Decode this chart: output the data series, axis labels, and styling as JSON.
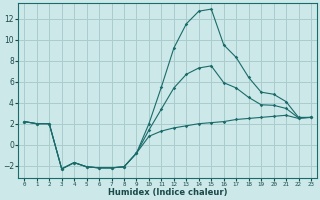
{
  "xlabel": "Humidex (Indice chaleur)",
  "ylabel": "",
  "bg_color": "#cce8e8",
  "grid_color": "#aacccc",
  "line_color": "#1a6b6b",
  "xlim": [
    -0.5,
    23.5
  ],
  "ylim": [
    -3.2,
    13.5
  ],
  "xticks": [
    0,
    1,
    2,
    3,
    4,
    5,
    6,
    7,
    8,
    9,
    10,
    11,
    12,
    13,
    14,
    15,
    16,
    17,
    18,
    19,
    20,
    21,
    22,
    23
  ],
  "yticks": [
    -2,
    0,
    2,
    4,
    6,
    8,
    10,
    12
  ],
  "series": {
    "max": {
      "x": [
        0,
        1,
        2,
        3,
        4,
        5,
        6,
        7,
        8,
        9,
        10,
        11,
        12,
        13,
        14,
        15,
        16,
        17,
        18,
        19,
        20,
        21,
        22,
        23
      ],
      "y": [
        2.2,
        2.0,
        2.0,
        -2.3,
        -1.7,
        -2.1,
        -2.2,
        -2.2,
        -2.1,
        -0.8,
        2.0,
        5.5,
        9.2,
        11.5,
        12.7,
        12.9,
        9.5,
        8.3,
        6.4,
        5.0,
        4.8,
        4.1,
        2.6,
        2.6
      ]
    },
    "min": {
      "x": [
        0,
        1,
        2,
        3,
        4,
        5,
        6,
        7,
        8,
        9,
        10,
        11,
        12,
        13,
        14,
        15,
        16,
        17,
        18,
        19,
        20,
        21,
        22,
        23
      ],
      "y": [
        2.2,
        2.0,
        2.0,
        -2.3,
        -1.7,
        -2.1,
        -2.2,
        -2.2,
        -2.1,
        -0.8,
        0.8,
        1.3,
        1.6,
        1.8,
        2.0,
        2.1,
        2.2,
        2.4,
        2.5,
        2.6,
        2.7,
        2.8,
        2.5,
        2.6
      ]
    },
    "avg": {
      "x": [
        0,
        1,
        2,
        3,
        4,
        5,
        6,
        7,
        8,
        9,
        10,
        11,
        12,
        13,
        14,
        15,
        16,
        17,
        18,
        19,
        20,
        21,
        22,
        23
      ],
      "y": [
        2.2,
        2.0,
        2.0,
        -2.3,
        -1.7,
        -2.1,
        -2.2,
        -2.2,
        -2.1,
        -0.8,
        1.4,
        3.4,
        5.4,
        6.7,
        7.3,
        7.5,
        5.9,
        5.4,
        4.5,
        3.8,
        3.75,
        3.45,
        2.55,
        2.6
      ]
    }
  }
}
